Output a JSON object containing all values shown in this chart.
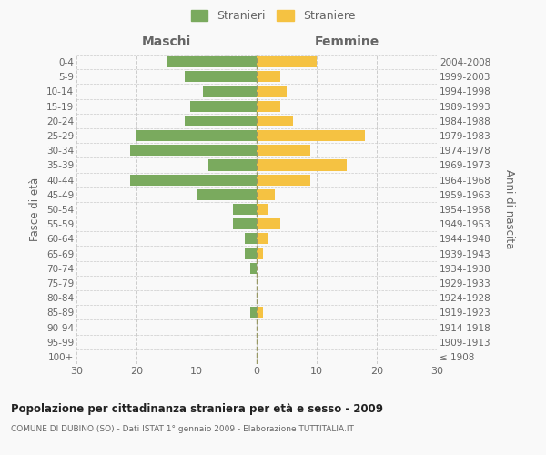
{
  "age_groups": [
    "100+",
    "95-99",
    "90-94",
    "85-89",
    "80-84",
    "75-79",
    "70-74",
    "65-69",
    "60-64",
    "55-59",
    "50-54",
    "45-49",
    "40-44",
    "35-39",
    "30-34",
    "25-29",
    "20-24",
    "15-19",
    "10-14",
    "5-9",
    "0-4"
  ],
  "birth_years": [
    "≤ 1908",
    "1909-1913",
    "1914-1918",
    "1919-1923",
    "1924-1928",
    "1929-1933",
    "1934-1938",
    "1939-1943",
    "1944-1948",
    "1949-1953",
    "1954-1958",
    "1959-1963",
    "1964-1968",
    "1969-1973",
    "1974-1978",
    "1979-1983",
    "1984-1988",
    "1989-1993",
    "1994-1998",
    "1999-2003",
    "2004-2008"
  ],
  "males": [
    0,
    0,
    0,
    1,
    0,
    0,
    1,
    2,
    2,
    4,
    4,
    10,
    21,
    8,
    21,
    20,
    12,
    11,
    9,
    12,
    15
  ],
  "females": [
    0,
    0,
    0,
    1,
    0,
    0,
    0,
    1,
    2,
    4,
    2,
    3,
    9,
    15,
    9,
    18,
    6,
    4,
    5,
    4,
    10
  ],
  "male_color": "#7aaa5e",
  "female_color": "#f5c242",
  "center_line_color": "#999966",
  "title": "Popolazione per cittadinanza straniera per età e sesso - 2009",
  "subtitle": "COMUNE DI DUBINO (SO) - Dati ISTAT 1° gennaio 2009 - Elaborazione TUTTITALIA.IT",
  "xlabel_left": "Maschi",
  "xlabel_right": "Femmine",
  "ylabel_left": "Fasce di età",
  "ylabel_right": "Anni di nascita",
  "xlim": 30,
  "legend_stranieri": "Stranieri",
  "legend_straniere": "Straniere",
  "bg_color": "#f9f9f9",
  "grid_color": "#cccccc",
  "text_color": "#666666"
}
